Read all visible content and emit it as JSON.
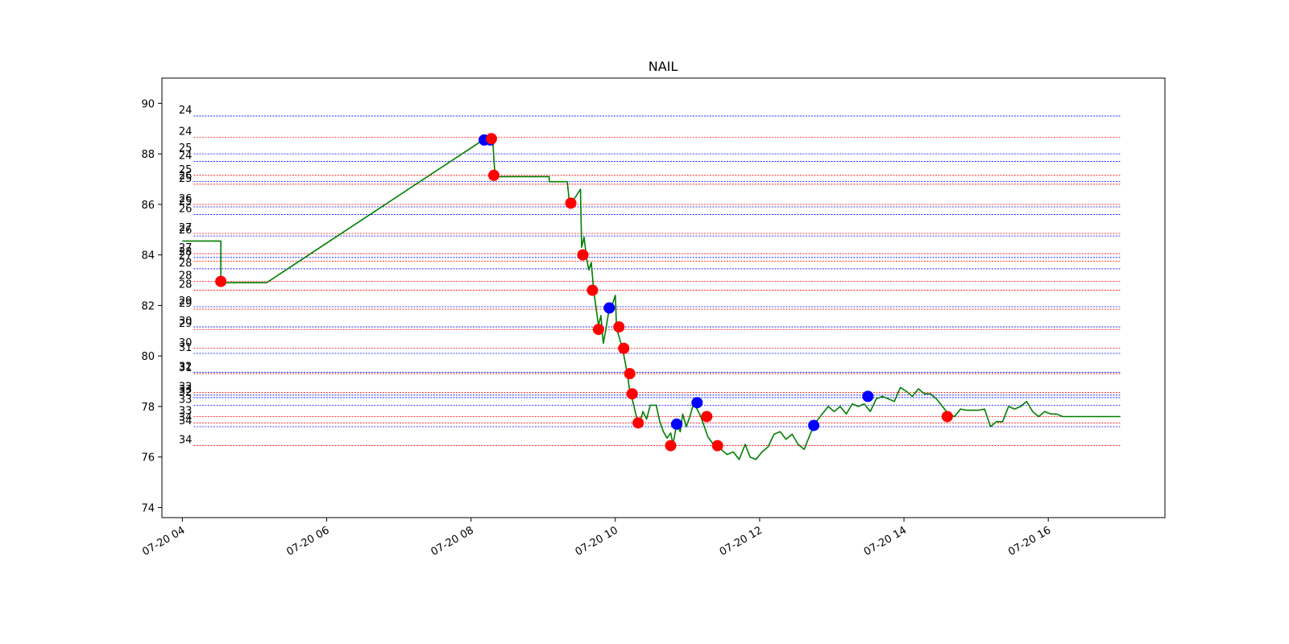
{
  "chart_data": {
    "type": "line",
    "title": "NAIL",
    "xlabel": "",
    "ylabel": "",
    "x_range": [
      "2023-07-20T03:43",
      "2023-07-20T17:37"
    ],
    "ylim": [
      73.6,
      91.0
    ],
    "x_ticks": [
      {
        "t": "2023-07-20T04:00",
        "label": "07-20 04"
      },
      {
        "t": "2023-07-20T06:00",
        "label": "07-20 06"
      },
      {
        "t": "2023-07-20T08:00",
        "label": "07-20 08"
      },
      {
        "t": "2023-07-20T10:00",
        "label": "07-20 10"
      },
      {
        "t": "2023-07-20T12:00",
        "label": "07-20 12"
      },
      {
        "t": "2023-07-20T14:00",
        "label": "07-20 14"
      },
      {
        "t": "2023-07-20T16:00",
        "label": "07-20 16"
      }
    ],
    "y_ticks": [
      74,
      76,
      78,
      80,
      82,
      84,
      86,
      88,
      90
    ],
    "grid": false,
    "line_color": "#007f00",
    "series": [
      {
        "points": [
          [
            "2023-07-20T04:00",
            84.55
          ],
          [
            "2023-07-20T04:32",
            84.55
          ],
          [
            "2023-07-20T04:32",
            82.9
          ],
          [
            "2023-07-20T05:10",
            82.9
          ],
          [
            "2023-07-20T08:10",
            88.55
          ],
          [
            "2023-07-20T08:18",
            88.6
          ],
          [
            "2023-07-20T08:20",
            87.1
          ],
          [
            "2023-07-20T09:05",
            87.1
          ],
          [
            "2023-07-20T09:05",
            86.9
          ],
          [
            "2023-07-20T09:20",
            86.9
          ],
          [
            "2023-07-20T09:22",
            86.0
          ],
          [
            "2023-07-20T09:27",
            86.3
          ],
          [
            "2023-07-20T09:31",
            86.6
          ],
          [
            "2023-07-20T09:32",
            84.3
          ],
          [
            "2023-07-20T09:34",
            84.7
          ],
          [
            "2023-07-20T09:36",
            83.9
          ],
          [
            "2023-07-20T09:38",
            83.4
          ],
          [
            "2023-07-20T09:40",
            83.7
          ],
          [
            "2023-07-20T09:42",
            82.6
          ],
          [
            "2023-07-20T09:44",
            81.9
          ],
          [
            "2023-07-20T09:46",
            81.2
          ],
          [
            "2023-07-20T09:48",
            81.6
          ],
          [
            "2023-07-20T09:50",
            80.5
          ],
          [
            "2023-07-20T09:52",
            81.0
          ],
          [
            "2023-07-20T09:55",
            81.9
          ],
          [
            "2023-07-20T09:58",
            82.1
          ],
          [
            "2023-07-20T10:00",
            82.4
          ],
          [
            "2023-07-20T10:01",
            81.1
          ],
          [
            "2023-07-20T10:04",
            80.6
          ],
          [
            "2023-07-20T10:06",
            80.3
          ],
          [
            "2023-07-20T10:08",
            79.8
          ],
          [
            "2023-07-20T10:10",
            79.3
          ],
          [
            "2023-07-20T10:12",
            78.6
          ],
          [
            "2023-07-20T10:14",
            78.3
          ],
          [
            "2023-07-20T10:16",
            77.9
          ],
          [
            "2023-07-20T10:18",
            77.5
          ],
          [
            "2023-07-20T10:20",
            77.3
          ],
          [
            "2023-07-20T10:23",
            77.8
          ],
          [
            "2023-07-20T10:26",
            77.5
          ],
          [
            "2023-07-20T10:29",
            78.05
          ],
          [
            "2023-07-20T10:34",
            78.05
          ],
          [
            "2023-07-20T10:37",
            77.4
          ],
          [
            "2023-07-20T10:40",
            77.0
          ],
          [
            "2023-07-20T10:43",
            76.75
          ],
          [
            "2023-07-20T10:46",
            76.95
          ],
          [
            "2023-07-20T10:48",
            76.5
          ],
          [
            "2023-07-20T10:51",
            77.3
          ],
          [
            "2023-07-20T10:54",
            77.0
          ],
          [
            "2023-07-20T10:56",
            77.7
          ],
          [
            "2023-07-20T10:59",
            77.2
          ],
          [
            "2023-07-20T11:02",
            77.6
          ],
          [
            "2023-07-20T11:05",
            78.1
          ],
          [
            "2023-07-20T11:08",
            77.9
          ],
          [
            "2023-07-20T11:11",
            77.6
          ],
          [
            "2023-07-20T11:14",
            77.2
          ],
          [
            "2023-07-20T11:17",
            76.8
          ],
          [
            "2023-07-20T11:20",
            76.6
          ],
          [
            "2023-07-20T11:23",
            76.4
          ],
          [
            "2023-07-20T11:28",
            76.3
          ],
          [
            "2023-07-20T11:33",
            76.1
          ],
          [
            "2023-07-20T11:38",
            76.2
          ],
          [
            "2023-07-20T11:43",
            75.9
          ],
          [
            "2023-07-20T11:48",
            76.5
          ],
          [
            "2023-07-20T11:52",
            76.0
          ],
          [
            "2023-07-20T11:57",
            75.9
          ],
          [
            "2023-07-20T12:02",
            76.2
          ],
          [
            "2023-07-20T12:07",
            76.4
          ],
          [
            "2023-07-20T12:12",
            76.9
          ],
          [
            "2023-07-20T12:17",
            77.0
          ],
          [
            "2023-07-20T12:22",
            76.7
          ],
          [
            "2023-07-20T12:27",
            76.9
          ],
          [
            "2023-07-20T12:32",
            76.5
          ],
          [
            "2023-07-20T12:37",
            76.3
          ],
          [
            "2023-07-20T12:42",
            76.9
          ],
          [
            "2023-07-20T12:47",
            77.4
          ],
          [
            "2023-07-20T12:52",
            77.7
          ],
          [
            "2023-07-20T12:57",
            78.0
          ],
          [
            "2023-07-20T13:02",
            77.8
          ],
          [
            "2023-07-20T13:07",
            78.0
          ],
          [
            "2023-07-20T13:12",
            77.7
          ],
          [
            "2023-07-20T13:17",
            78.1
          ],
          [
            "2023-07-20T13:22",
            78.0
          ],
          [
            "2023-07-20T13:27",
            78.1
          ],
          [
            "2023-07-20T13:32",
            77.8
          ],
          [
            "2023-07-20T13:37",
            78.3
          ],
          [
            "2023-07-20T13:42",
            78.4
          ],
          [
            "2023-07-20T13:47",
            78.3
          ],
          [
            "2023-07-20T13:52",
            78.2
          ],
          [
            "2023-07-20T13:57",
            78.75
          ],
          [
            "2023-07-20T14:02",
            78.6
          ],
          [
            "2023-07-20T14:07",
            78.4
          ],
          [
            "2023-07-20T14:12",
            78.7
          ],
          [
            "2023-07-20T14:17",
            78.5
          ],
          [
            "2023-07-20T14:22",
            78.5
          ],
          [
            "2023-07-20T14:27",
            78.3
          ],
          [
            "2023-07-20T14:32",
            78.0
          ],
          [
            "2023-07-20T14:37",
            77.7
          ],
          [
            "2023-07-20T14:42",
            77.6
          ],
          [
            "2023-07-20T14:47",
            77.9
          ],
          [
            "2023-07-20T14:52",
            77.85
          ],
          [
            "2023-07-20T14:57",
            77.85
          ],
          [
            "2023-07-20T15:02",
            77.85
          ],
          [
            "2023-07-20T15:07",
            77.9
          ],
          [
            "2023-07-20T15:12",
            77.2
          ],
          [
            "2023-07-20T15:17",
            77.4
          ],
          [
            "2023-07-20T15:22",
            77.4
          ],
          [
            "2023-07-20T15:27",
            78.0
          ],
          [
            "2023-07-20T15:32",
            77.9
          ],
          [
            "2023-07-20T15:37",
            78.0
          ],
          [
            "2023-07-20T15:42",
            78.2
          ],
          [
            "2023-07-20T15:47",
            77.8
          ],
          [
            "2023-07-20T15:52",
            77.6
          ],
          [
            "2023-07-20T15:57",
            77.8
          ],
          [
            "2023-07-20T16:02",
            77.7
          ],
          [
            "2023-07-20T16:07",
            77.7
          ],
          [
            "2023-07-20T16:12",
            77.6
          ],
          [
            "2023-07-20T17:00",
            77.6
          ]
        ]
      }
    ],
    "markers": [
      {
        "t": "2023-07-20T04:32",
        "y": 82.95,
        "color": "red"
      },
      {
        "t": "2023-07-20T08:11",
        "y": 88.55,
        "color": "blue"
      },
      {
        "t": "2023-07-20T08:16",
        "y": 88.55,
        "color": "blue"
      },
      {
        "t": "2023-07-20T08:17",
        "y": 88.6,
        "color": "red"
      },
      {
        "t": "2023-07-20T08:19",
        "y": 87.15,
        "color": "red"
      },
      {
        "t": "2023-07-20T09:23",
        "y": 86.05,
        "color": "red"
      },
      {
        "t": "2023-07-20T09:33",
        "y": 84.0,
        "color": "red"
      },
      {
        "t": "2023-07-20T09:41",
        "y": 82.6,
        "color": "red"
      },
      {
        "t": "2023-07-20T09:46",
        "y": 81.05,
        "color": "red"
      },
      {
        "t": "2023-07-20T09:55",
        "y": 81.9,
        "color": "blue"
      },
      {
        "t": "2023-07-20T10:03",
        "y": 81.15,
        "color": "red"
      },
      {
        "t": "2023-07-20T10:07",
        "y": 80.3,
        "color": "red"
      },
      {
        "t": "2023-07-20T10:12",
        "y": 79.3,
        "color": "red"
      },
      {
        "t": "2023-07-20T10:14",
        "y": 78.5,
        "color": "red"
      },
      {
        "t": "2023-07-20T10:19",
        "y": 77.35,
        "color": "red"
      },
      {
        "t": "2023-07-20T10:46",
        "y": 76.45,
        "color": "red"
      },
      {
        "t": "2023-07-20T10:51",
        "y": 77.3,
        "color": "blue"
      },
      {
        "t": "2023-07-20T11:08",
        "y": 78.15,
        "color": "blue"
      },
      {
        "t": "2023-07-20T11:16",
        "y": 77.6,
        "color": "red"
      },
      {
        "t": "2023-07-20T11:25",
        "y": 76.45,
        "color": "red"
      },
      {
        "t": "2023-07-20T12:45",
        "y": 77.25,
        "color": "blue"
      },
      {
        "t": "2023-07-20T13:30",
        "y": 78.4,
        "color": "blue"
      },
      {
        "t": "2023-07-20T14:36",
        "y": 77.6,
        "color": "red"
      }
    ],
    "level_lines": [
      {
        "y": 89.5,
        "color": "blue",
        "label": "24"
      },
      {
        "y": 88.65,
        "color": "red",
        "label": "24"
      },
      {
        "y": 88.0,
        "color": "blue",
        "label": "25"
      },
      {
        "y": 87.7,
        "color": "blue",
        "label": "24"
      },
      {
        "y": 87.15,
        "color": "red",
        "label": "25"
      },
      {
        "y": 86.9,
        "color": "blue",
        "label": "26"
      },
      {
        "y": 86.8,
        "color": "red",
        "label": "25"
      },
      {
        "y": 86.0,
        "color": "red",
        "label": "26"
      },
      {
        "y": 85.9,
        "color": "blue",
        "label": "25"
      },
      {
        "y": 85.6,
        "color": "blue",
        "label": "26"
      },
      {
        "y": 84.85,
        "color": "red",
        "label": "27"
      },
      {
        "y": 84.75,
        "color": "blue",
        "label": "26"
      },
      {
        "y": 84.05,
        "color": "red",
        "label": "27"
      },
      {
        "y": 83.9,
        "color": "blue",
        "label": "28"
      },
      {
        "y": 83.75,
        "color": "red",
        "label": "27"
      },
      {
        "y": 83.45,
        "color": "blue",
        "label": "28"
      },
      {
        "y": 82.95,
        "color": "red",
        "label": "28"
      },
      {
        "y": 82.6,
        "color": "red",
        "label": "28"
      },
      {
        "y": 81.95,
        "color": "blue",
        "label": "29"
      },
      {
        "y": 81.85,
        "color": "red",
        "label": "29"
      },
      {
        "y": 81.15,
        "color": "blue",
        "label": "30"
      },
      {
        "y": 81.05,
        "color": "red",
        "label": "29"
      },
      {
        "y": 80.3,
        "color": "red",
        "label": "30"
      },
      {
        "y": 80.1,
        "color": "blue",
        "label": "31"
      },
      {
        "y": 79.35,
        "color": "blue",
        "label": "32"
      },
      {
        "y": 79.3,
        "color": "red",
        "label": "31"
      },
      {
        "y": 78.55,
        "color": "red",
        "label": "32"
      },
      {
        "y": 78.45,
        "color": "blue",
        "label": "33"
      },
      {
        "y": 78.35,
        "color": "blue",
        "label": "32"
      },
      {
        "y": 78.05,
        "color": "blue",
        "label": "33"
      },
      {
        "y": 77.6,
        "color": "red",
        "label": "33"
      },
      {
        "y": 77.35,
        "color": "red",
        "label": "34"
      },
      {
        "y": 77.2,
        "color": "blue",
        "label": "34"
      },
      {
        "y": 76.45,
        "color": "red",
        "label": "34"
      }
    ]
  }
}
